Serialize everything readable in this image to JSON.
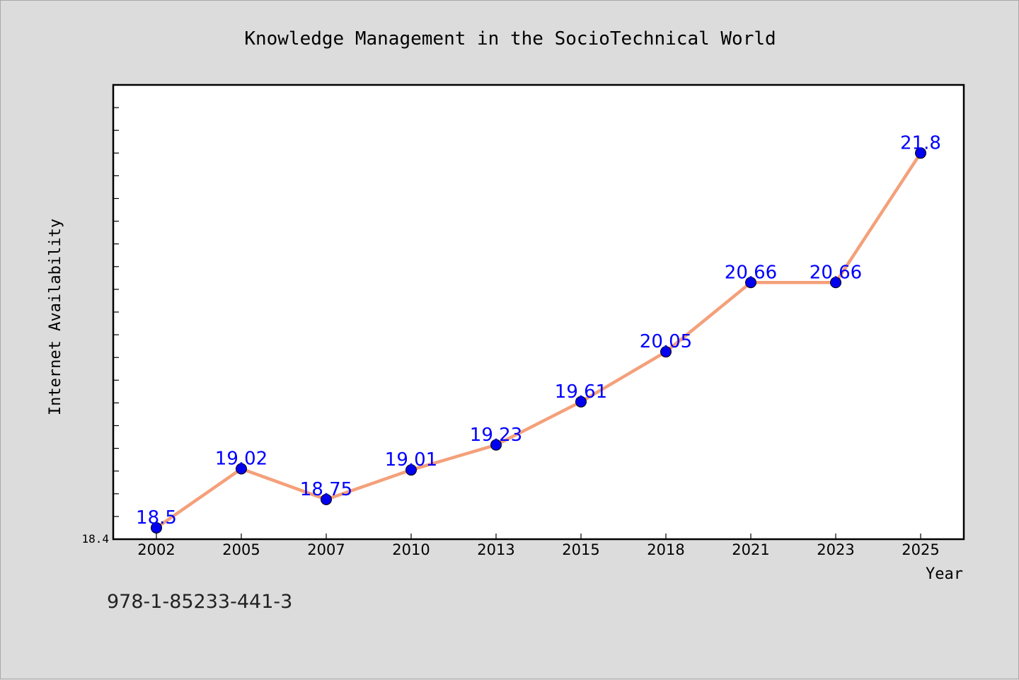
{
  "chart_data": {
    "type": "line",
    "title": "Knowledge Management in the SocioTechnical World",
    "xlabel": "Year",
    "ylabel": "Internet Availability",
    "categories": [
      "2002",
      "2005",
      "2007",
      "2010",
      "2013",
      "2015",
      "2018",
      "2021",
      "2023",
      "2025"
    ],
    "values": [
      18.5,
      19.02,
      18.75,
      19.01,
      19.23,
      19.61,
      20.05,
      20.66,
      20.66,
      21.8
    ],
    "value_labels": [
      "18.5",
      "19.02",
      "18.75",
      "19.01",
      "19.23",
      "19.61",
      "20.05",
      "20.66",
      "20.66",
      "21.8"
    ],
    "ylim": [
      18.4,
      22.4
    ],
    "y_tick_labels": [
      "18.4"
    ],
    "grid": false,
    "legend": "none",
    "colors": {
      "line": "#f4a07a",
      "marker": "#0000ee",
      "data_label": "#0000ff",
      "axis": "#000000",
      "plot_background": "#ffffff",
      "page_background": "#dcdcdc"
    }
  },
  "footer": {
    "isbn": "978-1-85233-441-3"
  }
}
